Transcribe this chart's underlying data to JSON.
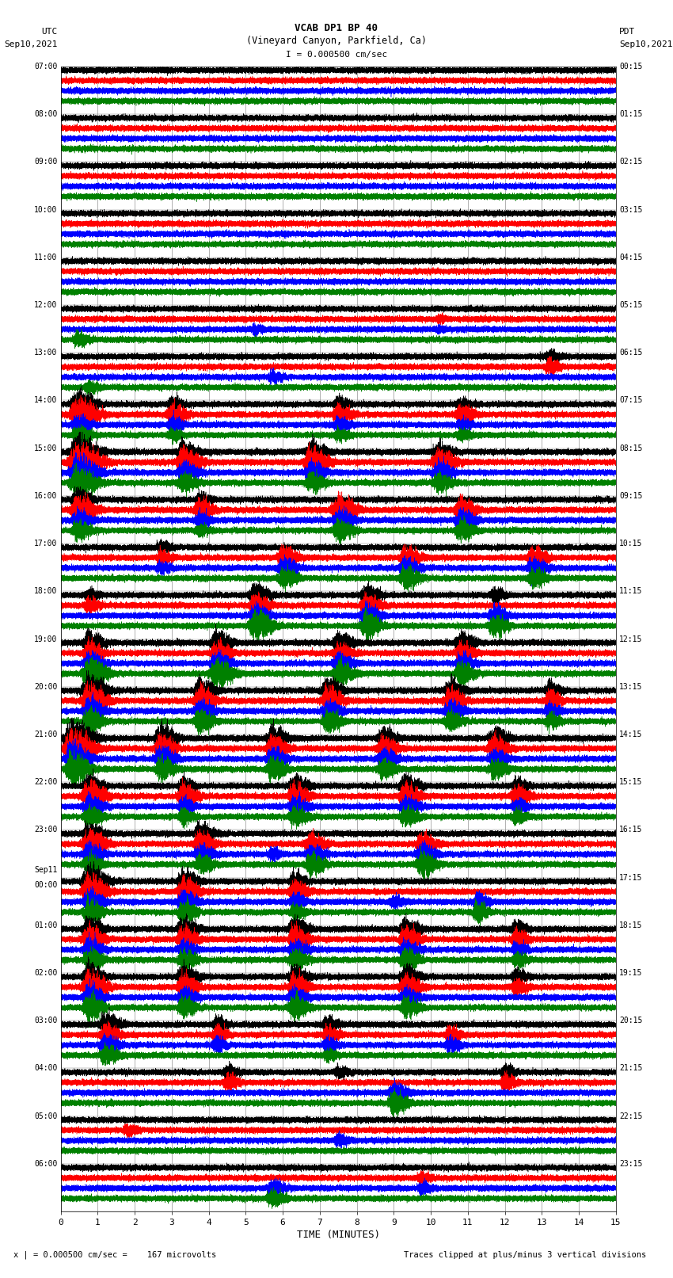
{
  "title_line1": "VCAB DP1 BP 40",
  "title_line2": "(Vineyard Canyon, Parkfield, Ca)",
  "scale_label": "I = 0.000500 cm/sec",
  "left_label_date1": "UTC",
  "left_label_date2": "Sep10,2021",
  "right_label_date1": "PDT",
  "right_label_date2": "Sep10,2021",
  "bottom_label": "TIME (MINUTES)",
  "footer_left": "x | = 0.000500 cm/sec =    167 microvolts",
  "footer_right": "Traces clipped at plus/minus 3 vertical divisions",
  "utc_times": [
    "07:00",
    "08:00",
    "09:00",
    "10:00",
    "11:00",
    "12:00",
    "13:00",
    "14:00",
    "15:00",
    "16:00",
    "17:00",
    "18:00",
    "19:00",
    "20:00",
    "21:00",
    "22:00",
    "23:00",
    "Sep11\n00:00",
    "01:00",
    "02:00",
    "03:00",
    "04:00",
    "05:00",
    "06:00"
  ],
  "pdt_times": [
    "00:15",
    "01:15",
    "02:15",
    "03:15",
    "04:15",
    "05:15",
    "06:15",
    "07:15",
    "08:15",
    "09:15",
    "10:15",
    "11:15",
    "12:15",
    "13:15",
    "14:15",
    "15:15",
    "16:15",
    "17:15",
    "18:15",
    "19:15",
    "20:15",
    "21:15",
    "22:15",
    "23:15"
  ],
  "n_rows": 24,
  "n_channels": 4,
  "channel_colors": [
    "black",
    "red",
    "blue",
    "green"
  ],
  "minutes": 15,
  "sample_rate": 40,
  "bg_color": "white",
  "grid_color": "#777777",
  "xmin": 0,
  "xmax": 15,
  "xticks": [
    0,
    1,
    2,
    3,
    4,
    5,
    6,
    7,
    8,
    9,
    10,
    11,
    12,
    13,
    14,
    15
  ]
}
